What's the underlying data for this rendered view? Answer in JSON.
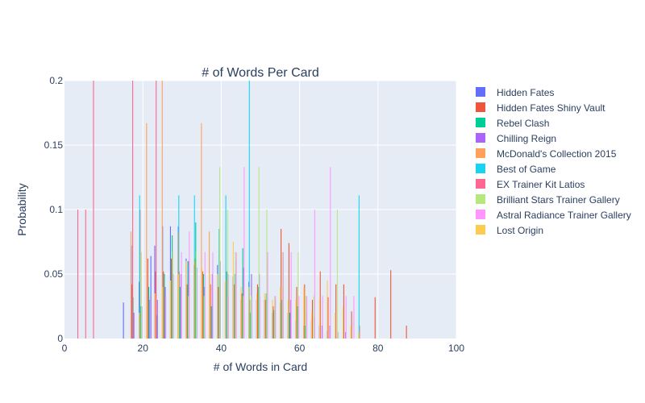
{
  "chart_data": {
    "type": "bar",
    "title": "# of Words Per Card",
    "xlabel": "# of Words in Card",
    "ylabel": "Probability",
    "xlim": [
      0,
      100
    ],
    "ylim": [
      0,
      0.2
    ],
    "x_ticks": [
      0,
      20,
      40,
      60,
      80,
      100
    ],
    "y_ticks": [
      0,
      0.05,
      0.1,
      0.15,
      0.2
    ],
    "y_tick_labels": [
      "0",
      "0.05",
      "0.1",
      "0.15",
      "0.2"
    ],
    "grid": true,
    "legend_position": "right",
    "series": [
      {
        "name": "Hidden Fates",
        "color": "#636efa",
        "points": [
          [
            16,
            0.028
          ],
          [
            18,
            0.072
          ],
          [
            20,
            0.044
          ],
          [
            22,
            0.03
          ],
          [
            23,
            0.064
          ],
          [
            24,
            0.072
          ],
          [
            26,
            0.087
          ],
          [
            28,
            0.087
          ],
          [
            30,
            0.087
          ],
          [
            32,
            0.062
          ],
          [
            34,
            0.057
          ],
          [
            36,
            0.044
          ],
          [
            38,
            0.044
          ],
          [
            40,
            0.057
          ],
          [
            42,
            0.044
          ],
          [
            44,
            0.048
          ],
          [
            46,
            0.03
          ],
          [
            48,
            0.044
          ],
          [
            50,
            0.03
          ],
          [
            52,
            0.03
          ],
          [
            54,
            0.02
          ],
          [
            56,
            0.028
          ],
          [
            58,
            0.02
          ],
          [
            60,
            0.014
          ],
          [
            62,
            0.01
          ],
          [
            64,
            0.014
          ],
          [
            66,
            0.01
          ],
          [
            68,
            0.006
          ]
        ]
      },
      {
        "name": "Hidden Fates Shiny Vault",
        "color": "#ef553b",
        "points": [
          [
            18,
            0.042
          ],
          [
            20,
            0.1
          ],
          [
            22,
            0.062
          ],
          [
            24,
            0.052
          ],
          [
            26,
            0.052
          ],
          [
            28,
            0.062
          ],
          [
            30,
            0.052
          ],
          [
            32,
            0.042
          ],
          [
            34,
            0.062
          ],
          [
            36,
            0.052
          ],
          [
            38,
            0.042
          ],
          [
            40,
            0.04
          ],
          [
            42,
            0.052
          ],
          [
            44,
            0.042
          ],
          [
            46,
            0.035
          ],
          [
            48,
            0.03
          ],
          [
            50,
            0.042
          ],
          [
            52,
            0.03
          ],
          [
            54,
            0.025
          ],
          [
            56,
            0.085
          ],
          [
            58,
            0.074
          ],
          [
            60,
            0.04
          ],
          [
            62,
            0.042
          ],
          [
            64,
            0.03
          ],
          [
            66,
            0.052
          ],
          [
            68,
            0.032
          ],
          [
            70,
            0.042
          ],
          [
            72,
            0.042
          ],
          [
            74,
            0.021
          ],
          [
            76,
            0.01
          ],
          [
            80,
            0.032
          ],
          [
            84,
            0.053
          ],
          [
            88,
            0.01
          ]
        ]
      },
      {
        "name": "Rebel Clash",
        "color": "#00cc96",
        "points": [
          [
            18,
            0.032
          ],
          [
            20,
            0.025
          ],
          [
            22,
            0.04
          ],
          [
            24,
            0.018
          ],
          [
            26,
            0.05
          ],
          [
            28,
            0.08
          ],
          [
            30,
            0.04
          ],
          [
            32,
            0.06
          ],
          [
            34,
            0.09
          ],
          [
            36,
            0.05
          ],
          [
            38,
            0.025
          ],
          [
            40,
            0.085
          ],
          [
            42,
            0.052
          ],
          [
            44,
            0.05
          ],
          [
            46,
            0.07
          ],
          [
            48,
            0.02
          ],
          [
            50,
            0.04
          ],
          [
            52,
            0.035
          ],
          [
            54,
            0.022
          ],
          [
            56,
            0.03
          ],
          [
            58,
            0.02
          ],
          [
            60,
            0.025
          ],
          [
            62,
            0.01
          ]
        ]
      },
      {
        "name": "Chilling Reign",
        "color": "#ab63fa",
        "points": [
          [
            18,
            0.02
          ],
          [
            20,
            0.025
          ],
          [
            22,
            0.03
          ],
          [
            24,
            0.03
          ],
          [
            26,
            0.04
          ],
          [
            28,
            0.05
          ],
          [
            30,
            0.05
          ],
          [
            32,
            0.06
          ],
          [
            34,
            0.055
          ],
          [
            36,
            0.04
          ],
          [
            38,
            0.05
          ],
          [
            40,
            0.06
          ],
          [
            42,
            0.05
          ],
          [
            44,
            0.06
          ],
          [
            46,
            0.055
          ],
          [
            48,
            0.05
          ],
          [
            50,
            0.05
          ],
          [
            52,
            0.058
          ],
          [
            54,
            0.03
          ],
          [
            56,
            0.04
          ],
          [
            58,
            0.03
          ],
          [
            60,
            0.025
          ],
          [
            62,
            0.02
          ],
          [
            64,
            0.017
          ],
          [
            66,
            0.01
          ],
          [
            68,
            0.01
          ],
          [
            70,
            0.005
          ],
          [
            72,
            0.005
          ]
        ]
      },
      {
        "name": "McDonald's Collection 2015",
        "color": "#ffa15a",
        "points": [
          [
            17,
            0.083
          ],
          [
            19,
            0.0
          ],
          [
            21,
            0.167
          ],
          [
            23,
            0.0
          ],
          [
            25,
            0.2
          ],
          [
            27,
            0.0
          ],
          [
            29,
            0.083
          ],
          [
            31,
            0.0
          ],
          [
            33,
            0.0
          ],
          [
            35,
            0.167
          ],
          [
            37,
            0.083
          ],
          [
            39,
            0.0
          ],
          [
            41,
            0.0
          ],
          [
            43,
            0.0
          ],
          [
            45,
            0.0
          ],
          [
            47,
            0.0
          ]
        ]
      },
      {
        "name": "Best of Game",
        "color": "#19d3f3",
        "points": [
          [
            19,
            0.111
          ],
          [
            29,
            0.111
          ],
          [
            33,
            0.111
          ],
          [
            41,
            0.111
          ],
          [
            47,
            0.2
          ],
          [
            75,
            0.111
          ]
        ]
      },
      {
        "name": "EX Trainer Kit Latios",
        "color": "#ff6692",
        "points": [
          [
            3,
            0.1
          ],
          [
            5,
            0.1
          ],
          [
            7,
            0.2
          ],
          [
            17,
            0.2
          ],
          [
            23,
            0.2
          ]
        ]
      },
      {
        "name": "Brilliant Stars Trainer Gallery",
        "color": "#b6e880",
        "points": [
          [
            19,
            0.067
          ],
          [
            27,
            0.067
          ],
          [
            31,
            0.033
          ],
          [
            33,
            0.067
          ],
          [
            35,
            0.033
          ],
          [
            39,
            0.133
          ],
          [
            41,
            0.1
          ],
          [
            43,
            0.067
          ],
          [
            45,
            0.033
          ],
          [
            47,
            0.033
          ],
          [
            49,
            0.133
          ],
          [
            51,
            0.1
          ],
          [
            53,
            0.033
          ],
          [
            55,
            0.067
          ],
          [
            59,
            0.067
          ],
          [
            61,
            0.033
          ],
          [
            63,
            0.033
          ],
          [
            69,
            0.1
          ]
        ]
      },
      {
        "name": "Astral Radiance Trainer Gallery",
        "color": "#ff97ff",
        "points": [
          [
            21,
            0.033
          ],
          [
            25,
            0.033
          ],
          [
            29,
            0.067
          ],
          [
            31,
            0.083
          ],
          [
            35,
            0.067
          ],
          [
            37,
            0.067
          ],
          [
            41,
            0.033
          ],
          [
            43,
            0.067
          ],
          [
            45,
            0.133
          ],
          [
            49,
            0.033
          ],
          [
            51,
            0.067
          ],
          [
            53,
            0.033
          ],
          [
            55,
            0.067
          ],
          [
            57,
            0.067
          ],
          [
            59,
            0.033
          ],
          [
            61,
            0.033
          ],
          [
            63,
            0.1
          ],
          [
            65,
            0.033
          ],
          [
            67,
            0.133
          ],
          [
            71,
            0.033
          ],
          [
            73,
            0.033
          ]
        ]
      },
      {
        "name": "Lost Origin",
        "color": "#fecb52",
        "points": [
          [
            18,
            0.02
          ],
          [
            20,
            0.03
          ],
          [
            22,
            0.035
          ],
          [
            24,
            0.04
          ],
          [
            26,
            0.045
          ],
          [
            28,
            0.05
          ],
          [
            30,
            0.06
          ],
          [
            32,
            0.06
          ],
          [
            34,
            0.055
          ],
          [
            36,
            0.05
          ],
          [
            38,
            0.05
          ],
          [
            40,
            0.045
          ],
          [
            42,
            0.075
          ],
          [
            44,
            0.04
          ],
          [
            46,
            0.04
          ],
          [
            48,
            0.035
          ],
          [
            50,
            0.035
          ],
          [
            52,
            0.03
          ],
          [
            54,
            0.04
          ],
          [
            56,
            0.03
          ],
          [
            58,
            0.03
          ],
          [
            60,
            0.04
          ],
          [
            62,
            0.02
          ],
          [
            64,
            0.03
          ],
          [
            66,
            0.045
          ],
          [
            68,
            0.02
          ],
          [
            70,
            0.025
          ],
          [
            72,
            0.01
          ],
          [
            74,
            0.005
          ]
        ]
      }
    ]
  }
}
